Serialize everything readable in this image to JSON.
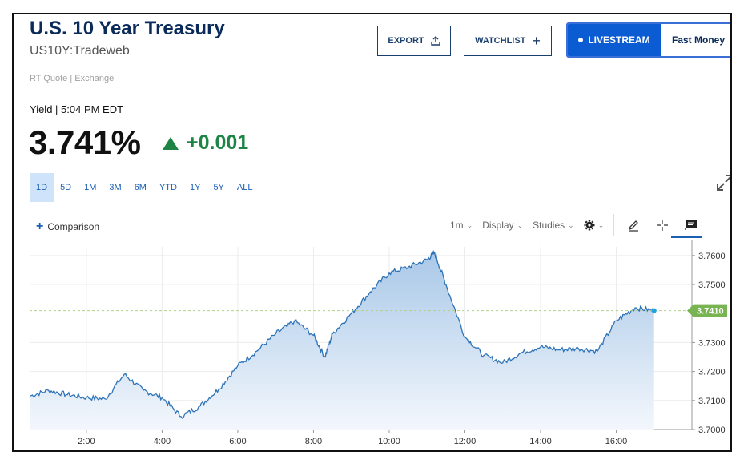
{
  "header": {
    "title": "U.S. 10 Year Treasury",
    "symbol": "US10Y:Tradeweb",
    "quote_source": "RT Quote | Exchange"
  },
  "actions": {
    "export_label": "EXPORT",
    "watchlist_label": "WATCHLIST",
    "livestream_label": "LIVESTREAM",
    "livestream_show": "Fast Money"
  },
  "quote": {
    "yield_label": "Yield | 5:04 PM EDT",
    "value": "3.741%",
    "change": "+0.001",
    "change_color": "#1d8446"
  },
  "ranges": [
    "1D",
    "5D",
    "1M",
    "3M",
    "6M",
    "YTD",
    "1Y",
    "5Y",
    "ALL"
  ],
  "active_range": "1D",
  "toolbar": {
    "comparison_label": "Comparison",
    "interval": "1m",
    "display": "Display",
    "studies": "Studies",
    "icons": [
      "gear-icon",
      "pencil-icon",
      "crosshair-icon",
      "flag-icon"
    ]
  },
  "chart_data": {
    "type": "area",
    "x_ticks": [
      "2:00",
      "4:00",
      "6:00",
      "8:00",
      "10:00",
      "12:00",
      "14:00",
      "16:00"
    ],
    "y_ticks": [
      "3.7600",
      "3.7500",
      "3.7300",
      "3.7200",
      "3.7100",
      "3.7000"
    ],
    "ylim": [
      3.7,
      3.763
    ],
    "xlim": [
      0.5,
      18
    ],
    "last_value": 3.741,
    "last_value_label": "3.7410",
    "line_color": "#2e73b8",
    "series": [
      {
        "x": [
          0.5,
          1.0,
          1.5,
          2.0,
          2.5,
          3.0,
          3.5,
          4.0,
          4.5,
          5.0,
          5.5,
          6.0,
          6.5,
          7.0,
          7.5,
          8.0,
          8.3,
          8.5,
          9.0,
          9.5,
          10.0,
          10.5,
          11.0,
          11.2,
          11.5,
          12.0,
          12.5,
          13.0,
          13.5,
          14.0,
          14.5,
          15.0,
          15.5,
          16.0,
          16.5,
          17.0
        ],
        "y": [
          3.7115,
          3.7135,
          3.712,
          3.711,
          3.7105,
          3.719,
          3.7135,
          3.711,
          3.7045,
          3.708,
          3.714,
          3.722,
          3.727,
          3.733,
          3.7375,
          3.7325,
          3.725,
          3.733,
          3.74,
          3.7475,
          3.754,
          3.756,
          3.7585,
          3.761,
          3.75,
          3.732,
          3.7255,
          3.723,
          3.7265,
          3.7285,
          3.7275,
          3.728,
          3.727,
          3.7375,
          3.742,
          3.741
        ]
      }
    ]
  }
}
